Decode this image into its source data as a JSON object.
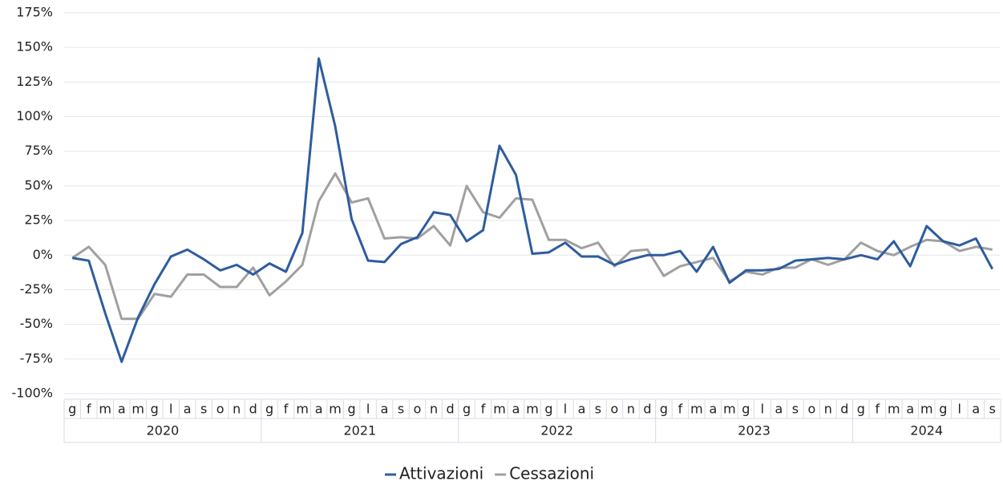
{
  "chart_data": {
    "type": "line",
    "categories": [
      "g",
      "f",
      "m",
      "a",
      "m",
      "g",
      "l",
      "a",
      "s",
      "o",
      "n",
      "d",
      "g",
      "f",
      "m",
      "a",
      "m",
      "g",
      "l",
      "a",
      "s",
      "o",
      "n",
      "d",
      "g",
      "f",
      "m",
      "a",
      "m",
      "g",
      "l",
      "a",
      "s",
      "o",
      "n",
      "d",
      "g",
      "f",
      "m",
      "a",
      "m",
      "g",
      "l",
      "a",
      "s",
      "o",
      "n",
      "d",
      "g",
      "f",
      "m",
      "a",
      "m",
      "g",
      "l",
      "a",
      "s"
    ],
    "years": [
      "2020",
      "2021",
      "2022",
      "2023",
      "2024"
    ],
    "series": [
      {
        "name": "Attivazioni",
        "color": "#2e5c9e",
        "values": [
          -2,
          -4,
          -42,
          -77,
          -45,
          -21,
          -1,
          4,
          -3,
          -11,
          -7,
          -14,
          -6,
          -12,
          16,
          142,
          93,
          26,
          -4,
          -5,
          8,
          13,
          31,
          29,
          10,
          18,
          79,
          58,
          1,
          2,
          9,
          -1,
          -1,
          -7,
          -3,
          0,
          0,
          3,
          -12,
          6,
          -20,
          -11,
          -11,
          -10,
          -4,
          -3,
          -2,
          -3,
          0,
          -3,
          10,
          -8,
          21,
          10,
          7,
          12,
          -10
        ]
      },
      {
        "name": "Cessazioni",
        "color": "#a0a0a0",
        "values": [
          -2,
          6,
          -7,
          -46,
          -46,
          -28,
          -30,
          -14,
          -14,
          -23,
          -23,
          -9,
          -29,
          -19,
          -7,
          39,
          59,
          38,
          41,
          12,
          13,
          12,
          21,
          7,
          50,
          31,
          27,
          41,
          40,
          11,
          11,
          5,
          9,
          -8,
          3,
          4,
          -15,
          -8,
          -5,
          -2,
          -19,
          -12,
          -14,
          -9,
          -9,
          -3,
          -7,
          -3,
          9,
          3,
          0,
          6,
          11,
          10,
          3,
          6,
          4
        ]
      }
    ],
    "ylim": [
      -100,
      175
    ],
    "yticks": [
      {
        "value": -100,
        "label": "-100%"
      },
      {
        "value": -75,
        "label": "-75%"
      },
      {
        "value": -50,
        "label": "-50%"
      },
      {
        "value": -25,
        "label": "-25%"
      },
      {
        "value": 0,
        "label": "0%"
      },
      {
        "value": 25,
        "label": "25%"
      },
      {
        "value": 50,
        "label": "50%"
      },
      {
        "value": 75,
        "label": "75%"
      },
      {
        "value": 100,
        "label": "100%"
      },
      {
        "value": 125,
        "label": "125%"
      },
      {
        "value": 150,
        "label": "150%"
      },
      {
        "value": 175,
        "label": "175%"
      }
    ],
    "grid": true,
    "legend": "bottom"
  }
}
